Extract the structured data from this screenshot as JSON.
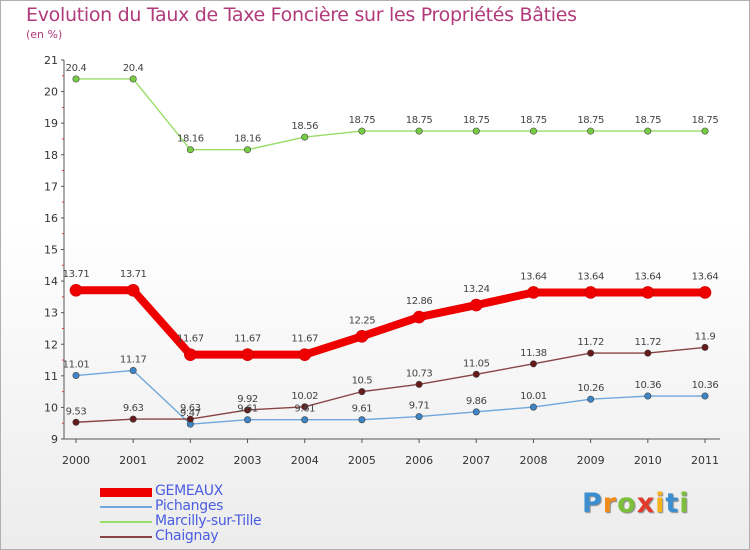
{
  "header": {
    "title": "Evolution du Taux de Taxe Foncière sur les Propriétés Bâties",
    "subtitle": "(en %)"
  },
  "chart_data": {
    "type": "line",
    "title": "Evolution du Taux de Taxe Foncière sur les Propriétés Bâties",
    "ylabel": "(en %)",
    "x": [
      "2000",
      "2001",
      "2002",
      "2003",
      "2004",
      "2005",
      "2006",
      "2007",
      "2008",
      "2009",
      "2010",
      "2011"
    ],
    "ylim": [
      9,
      21
    ],
    "yticks": [
      9,
      10,
      11,
      12,
      13,
      14,
      15,
      16,
      17,
      18,
      19,
      20,
      21
    ],
    "grid": false,
    "legend_position": "bottom-left",
    "series": [
      {
        "name": "GEMEAUX",
        "color": "#ee0000",
        "marker": "#ee0000",
        "width": 8,
        "values": [
          13.71,
          13.71,
          11.67,
          11.67,
          11.67,
          12.25,
          12.86,
          13.24,
          13.64,
          13.64,
          13.64,
          13.64
        ],
        "labels": [
          "13.71",
          "13.71",
          "11.67",
          "11.67",
          "11.67",
          "12.25",
          "12.86",
          "13.24",
          "13.64",
          "13.64",
          "13.64",
          "13.64"
        ]
      },
      {
        "name": "Pichanges",
        "color": "#6fa8dc",
        "marker": "#3d85c6",
        "width": 1.4,
        "values": [
          11.01,
          11.17,
          9.47,
          9.61,
          9.61,
          9.61,
          9.71,
          9.86,
          10.01,
          10.26,
          10.36,
          10.36
        ],
        "labels": [
          "11.01",
          "11.17",
          "9.47",
          "9.61",
          "9.61",
          "9.61",
          "9.71",
          "9.86",
          "10.01",
          "10.26",
          "10.36",
          "10.36"
        ]
      },
      {
        "name": "Marcilly-sur-Tille",
        "color": "#99dd66",
        "marker": "#77cc44",
        "width": 1.4,
        "values": [
          20.4,
          20.4,
          18.16,
          18.16,
          18.56,
          18.75,
          18.75,
          18.75,
          18.75,
          18.75,
          18.75,
          18.75
        ],
        "labels": [
          "20.4",
          "20.4",
          "18.16",
          "18.16",
          "18.56",
          "18.75",
          "18.75",
          "18.75",
          "18.75",
          "18.75",
          "18.75",
          "18.75"
        ]
      },
      {
        "name": "Chaignay",
        "color": "#884444",
        "marker": "#661a1a",
        "width": 1.4,
        "values": [
          9.53,
          9.63,
          9.63,
          9.92,
          10.02,
          10.5,
          10.73,
          11.05,
          11.38,
          11.72,
          11.72,
          11.9
        ],
        "labels": [
          "9.53",
          "9.63",
          "9.63",
          "9.92",
          "10.02",
          "10.5",
          "10.73",
          "11.05",
          "11.38",
          "11.72",
          "11.72",
          "11.9"
        ]
      }
    ]
  },
  "logo": {
    "text": "Proxiti",
    "letters": [
      "P",
      "r",
      "o",
      "x",
      "i",
      "t",
      "i"
    ],
    "colors": [
      "#3b8fd0",
      "#f08c1a",
      "#7cbf3a",
      "#e23b2e",
      "#f5b21a",
      "#3b8fd0",
      "#7cbf3a"
    ]
  }
}
